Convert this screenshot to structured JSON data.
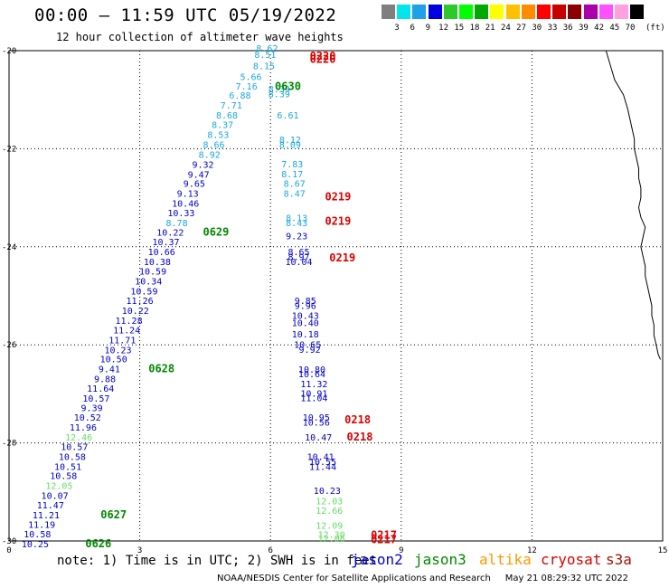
{
  "title": "00:00 – 11:59 UTC 05/19/2022",
  "subtitle": "12 hour collection of altimeter wave heights",
  "legend": {
    "colors": [
      "#7f7f7f",
      "#00e5ee",
      "#1fa0e8",
      "#0000e0",
      "#2ec82e",
      "#00ff00",
      "#00aa00",
      "#ffff00",
      "#ffc000",
      "#ff8c00",
      "#ff0000",
      "#c80000",
      "#8b0000",
      "#aa00aa",
      "#ff50ff",
      "#ffa0e0",
      "#000000"
    ],
    "labels": [
      "3",
      "6",
      "9",
      "12",
      "15",
      "18",
      "21",
      "24",
      "27",
      "30",
      "33",
      "36",
      "39",
      "42",
      "45",
      "70"
    ],
    "unit": "(ft)"
  },
  "axes": {
    "x_ticks": [
      "0",
      "3",
      "6",
      "9",
      "12",
      "15"
    ],
    "y_ticks": [
      "-20",
      "-22",
      "-24",
      "-26",
      "-28",
      "-30"
    ]
  },
  "track_colors": {
    "jason2": "#0000cc",
    "jason3": "#008800",
    "altika": "#ff9900",
    "cryosat": "#dd0000",
    "s3a": "#aa1100",
    "cyan": "#1aa8e0",
    "lightgreen": "#66dd66"
  },
  "tracks": {
    "diagonal": [
      {
        "v": "8.62",
        "x": 5.92,
        "y": -20.02,
        "c": "cyan"
      },
      {
        "v": "8.51",
        "x": 5.88,
        "y": -20.15,
        "c": "cyan"
      },
      {
        "v": "8.15",
        "x": 5.85,
        "y": -20.38,
        "c": "cyan"
      },
      {
        "v": "5.66",
        "x": 5.55,
        "y": -20.6,
        "c": "cyan"
      },
      {
        "v": "7.16",
        "x": 5.45,
        "y": -20.79,
        "c": "cyan"
      },
      {
        "v": "6.88",
        "x": 5.3,
        "y": -20.98,
        "c": "cyan"
      },
      {
        "v": "7.71",
        "x": 5.1,
        "y": -21.18,
        "c": "cyan"
      },
      {
        "v": "8.68",
        "x": 5.0,
        "y": -21.38,
        "c": "cyan"
      },
      {
        "v": "8.37",
        "x": 4.9,
        "y": -21.58,
        "c": "cyan"
      },
      {
        "v": "8.53",
        "x": 4.8,
        "y": -21.78,
        "c": "cyan"
      },
      {
        "v": "8.66",
        "x": 4.7,
        "y": -21.98,
        "c": "cyan"
      },
      {
        "v": "8.92",
        "x": 4.6,
        "y": -22.19,
        "c": "cyan"
      },
      {
        "v": "9.32",
        "x": 4.45,
        "y": -22.39,
        "c": "jason2"
      },
      {
        "v": "9.47",
        "x": 4.35,
        "y": -22.59,
        "c": "jason2"
      },
      {
        "v": "9.65",
        "x": 4.25,
        "y": -22.78,
        "c": "jason2"
      },
      {
        "v": "9.13",
        "x": 4.1,
        "y": -22.98,
        "c": "jason2"
      },
      {
        "v": "10.46",
        "x": 4.05,
        "y": -23.18,
        "c": "jason2"
      },
      {
        "v": "10.33",
        "x": 3.95,
        "y": -23.38,
        "c": "jason2"
      },
      {
        "v": "8.78",
        "x": 3.85,
        "y": -23.58,
        "c": "cyan"
      },
      {
        "v": "10.22",
        "x": 3.7,
        "y": -23.77,
        "c": "jason2"
      },
      {
        "v": "10.37",
        "x": 3.6,
        "y": -23.97,
        "c": "jason2"
      },
      {
        "v": "10.66",
        "x": 3.5,
        "y": -24.17,
        "c": "jason2"
      },
      {
        "v": "10.38",
        "x": 3.4,
        "y": -24.37,
        "c": "jason2"
      },
      {
        "v": "10.59",
        "x": 3.3,
        "y": -24.57,
        "c": "jason2"
      },
      {
        "v": "10.34",
        "x": 3.2,
        "y": -24.77,
        "c": "jason2"
      },
      {
        "v": "10.59",
        "x": 3.1,
        "y": -24.97,
        "c": "jason2"
      },
      {
        "v": "11.26",
        "x": 3.0,
        "y": -25.17,
        "c": "jason2"
      },
      {
        "v": "10.22",
        "x": 2.9,
        "y": -25.37,
        "c": "jason2"
      },
      {
        "v": "11.28",
        "x": 2.75,
        "y": -25.57,
        "c": "jason2"
      },
      {
        "v": "11.24",
        "x": 2.7,
        "y": -25.77,
        "c": "jason2"
      },
      {
        "v": "11.71",
        "x": 2.6,
        "y": -25.97,
        "c": "jason2"
      },
      {
        "v": "10.23",
        "x": 2.5,
        "y": -26.17,
        "c": "jason2"
      },
      {
        "v": "10.50",
        "x": 2.4,
        "y": -26.36,
        "c": "jason2"
      },
      {
        "v": "9.41",
        "x": 2.3,
        "y": -26.56,
        "c": "jason2"
      },
      {
        "v": "9.88",
        "x": 2.2,
        "y": -26.76,
        "c": "jason2"
      },
      {
        "v": "11.64",
        "x": 2.1,
        "y": -26.96,
        "c": "jason2"
      },
      {
        "v": "10.57",
        "x": 2.0,
        "y": -27.16,
        "c": "jason2"
      },
      {
        "v": "9.39",
        "x": 1.9,
        "y": -27.35,
        "c": "jason2"
      },
      {
        "v": "10.52",
        "x": 1.8,
        "y": -27.55,
        "c": "jason2"
      },
      {
        "v": "11.96",
        "x": 1.7,
        "y": -27.75,
        "c": "jason2"
      },
      {
        "v": "12.46",
        "x": 1.6,
        "y": -27.95,
        "c": "lightgreen"
      },
      {
        "v": "10.57",
        "x": 1.5,
        "y": -28.15,
        "c": "jason2"
      },
      {
        "v": "10.58",
        "x": 1.45,
        "y": -28.35,
        "c": "jason2"
      },
      {
        "v": "10.51",
        "x": 1.35,
        "y": -28.55,
        "c": "jason2"
      },
      {
        "v": "10.58",
        "x": 1.25,
        "y": -28.74,
        "c": "jason2"
      },
      {
        "v": "12.05",
        "x": 1.15,
        "y": -28.94,
        "c": "lightgreen"
      },
      {
        "v": "10.07",
        "x": 1.05,
        "y": -29.14,
        "c": "jason2"
      },
      {
        "v": "11.47",
        "x": 0.95,
        "y": -29.34,
        "c": "jason2"
      },
      {
        "v": "11.21",
        "x": 0.85,
        "y": -29.54,
        "c": "jason2"
      },
      {
        "v": "11.19",
        "x": 0.75,
        "y": -29.73,
        "c": "jason2"
      },
      {
        "v": "10.58",
        "x": 0.65,
        "y": -29.93,
        "c": "jason2"
      },
      {
        "v": "10.25",
        "x": 0.6,
        "y": -30.13,
        "c": "jason2"
      }
    ],
    "vertical": [
      {
        "v": "8.39",
        "x": 6.2,
        "y": -20.85,
        "c": "cyan"
      },
      {
        "v": "8.39",
        "x": 6.2,
        "y": -20.95,
        "c": "cyan"
      },
      {
        "v": "6.61",
        "x": 6.4,
        "y": -21.38,
        "c": "cyan"
      },
      {
        "v": "8.12",
        "x": 6.45,
        "y": -21.88,
        "c": "cyan"
      },
      {
        "v": "8.09",
        "x": 6.45,
        "y": -21.98,
        "c": "cyan"
      },
      {
        "v": "7.83",
        "x": 6.5,
        "y": -22.38,
        "c": "cyan"
      },
      {
        "v": "8.17",
        "x": 6.5,
        "y": -22.58,
        "c": "cyan"
      },
      {
        "v": "8.67",
        "x": 6.55,
        "y": -22.78,
        "c": "cyan"
      },
      {
        "v": "8.47",
        "x": 6.55,
        "y": -22.98,
        "c": "cyan"
      },
      {
        "v": "8.13",
        "x": 6.6,
        "y": -23.48,
        "c": "cyan"
      },
      {
        "v": "8.43",
        "x": 6.6,
        "y": -23.58,
        "c": "cyan"
      },
      {
        "v": "9.23",
        "x": 6.6,
        "y": -23.85,
        "c": "jason2"
      },
      {
        "v": "8.65",
        "x": 6.65,
        "y": -24.17,
        "c": "jason2"
      },
      {
        "v": "8.97",
        "x": 6.65,
        "y": -24.27,
        "c": "jason2"
      },
      {
        "v": "10.04",
        "x": 6.65,
        "y": -24.37,
        "c": "jason2"
      },
      {
        "v": "9.85",
        "x": 6.8,
        "y": -25.17,
        "c": "jason2"
      },
      {
        "v": "9.96",
        "x": 6.8,
        "y": -25.27,
        "c": "jason2"
      },
      {
        "v": "10.43",
        "x": 6.8,
        "y": -25.47,
        "c": "jason2"
      },
      {
        "v": "10.40",
        "x": 6.8,
        "y": -25.62,
        "c": "jason2"
      },
      {
        "v": "10.18",
        "x": 6.8,
        "y": -25.85,
        "c": "jason2"
      },
      {
        "v": "10.65",
        "x": 6.85,
        "y": -26.06,
        "c": "jason2"
      },
      {
        "v": "9.92",
        "x": 6.9,
        "y": -26.16,
        "c": "jason2"
      },
      {
        "v": "10.80",
        "x": 6.95,
        "y": -26.57,
        "c": "jason2"
      },
      {
        "v": "10.64",
        "x": 6.95,
        "y": -26.66,
        "c": "jason2"
      },
      {
        "v": "11.32",
        "x": 7.0,
        "y": -26.86,
        "c": "jason2"
      },
      {
        "v": "10.91",
        "x": 7.0,
        "y": -27.06,
        "c": "jason2"
      },
      {
        "v": "11.04",
        "x": 7.0,
        "y": -27.15,
        "c": "jason2"
      },
      {
        "v": "10.95",
        "x": 7.05,
        "y": -27.55,
        "c": "jason2"
      },
      {
        "v": "10.56",
        "x": 7.05,
        "y": -27.65,
        "c": "jason2"
      },
      {
        "v": "10.47",
        "x": 7.1,
        "y": -27.95,
        "c": "jason2"
      },
      {
        "v": "10.41",
        "x": 7.15,
        "y": -28.35,
        "c": "jason2"
      },
      {
        "v": "10.55",
        "x": 7.2,
        "y": -28.45,
        "c": "jason2"
      },
      {
        "v": "11.44",
        "x": 7.2,
        "y": -28.55,
        "c": "jason2"
      },
      {
        "v": "10.23",
        "x": 7.3,
        "y": -29.04,
        "c": "jason2"
      },
      {
        "v": "12.03",
        "x": 7.35,
        "y": -29.25,
        "c": "lightgreen"
      },
      {
        "v": "12.66",
        "x": 7.35,
        "y": -29.45,
        "c": "lightgreen"
      },
      {
        "v": "12.09",
        "x": 7.35,
        "y": -29.75,
        "c": "lightgreen"
      },
      {
        "v": "12.30",
        "x": 7.4,
        "y": -29.94,
        "c": "lightgreen"
      },
      {
        "v": "12.06",
        "x": 7.4,
        "y": -30.02,
        "c": "lightgreen"
      }
    ]
  },
  "time_labels": [
    {
      "t": "0220",
      "x": 7.2,
      "y": -20.18,
      "c": "cryosat"
    },
    {
      "t": "0220",
      "x": 7.2,
      "y": -20.25,
      "c": "cryosat"
    },
    {
      "t": "0630",
      "x": 6.4,
      "y": -20.8,
      "c": "jason3"
    },
    {
      "t": "0219",
      "x": 7.55,
      "y": -23.05,
      "c": "cryosat"
    },
    {
      "t": "0219",
      "x": 7.55,
      "y": -23.55,
      "c": "cryosat"
    },
    {
      "t": "0629",
      "x": 4.75,
      "y": -23.77,
      "c": "jason3"
    },
    {
      "t": "0219",
      "x": 7.65,
      "y": -24.3,
      "c": "cryosat"
    },
    {
      "t": "0628",
      "x": 3.5,
      "y": -26.56,
      "c": "jason3"
    },
    {
      "t": "0218",
      "x": 8.0,
      "y": -27.6,
      "c": "cryosat"
    },
    {
      "t": "0218",
      "x": 8.05,
      "y": -27.95,
      "c": "cryosat"
    },
    {
      "t": "0627",
      "x": 2.4,
      "y": -29.54,
      "c": "jason3"
    },
    {
      "t": "0626",
      "x": 2.05,
      "y": -30.13,
      "c": "jason3"
    },
    {
      "t": "0217",
      "x": 8.6,
      "y": -29.95,
      "c": "cryosat"
    },
    {
      "t": "0217",
      "x": 8.6,
      "y": -30.05,
      "c": "cryosat"
    }
  ],
  "coast": [
    [
      13.7,
      -20.0
    ],
    [
      13.75,
      -20.15
    ],
    [
      13.8,
      -20.3
    ],
    [
      13.85,
      -20.45
    ],
    [
      13.9,
      -20.6
    ],
    [
      14.0,
      -20.75
    ],
    [
      14.1,
      -20.9
    ],
    [
      14.15,
      -21.05
    ],
    [
      14.2,
      -21.2
    ],
    [
      14.25,
      -21.4
    ],
    [
      14.3,
      -21.6
    ],
    [
      14.35,
      -21.8
    ],
    [
      14.35,
      -22.0
    ],
    [
      14.4,
      -22.2
    ],
    [
      14.45,
      -22.4
    ],
    [
      14.45,
      -22.6
    ],
    [
      14.5,
      -22.8
    ],
    [
      14.5,
      -23.0
    ],
    [
      14.45,
      -23.2
    ],
    [
      14.5,
      -23.4
    ],
    [
      14.6,
      -23.6
    ],
    [
      14.55,
      -23.8
    ],
    [
      14.5,
      -24.0
    ],
    [
      14.55,
      -24.2
    ],
    [
      14.6,
      -24.4
    ],
    [
      14.6,
      -24.6
    ],
    [
      14.65,
      -24.8
    ],
    [
      14.7,
      -25.0
    ],
    [
      14.75,
      -25.2
    ],
    [
      14.75,
      -25.4
    ],
    [
      14.8,
      -25.6
    ],
    [
      14.8,
      -25.8
    ],
    [
      14.85,
      -26.0
    ],
    [
      14.9,
      -26.2
    ],
    [
      14.95,
      -26.3
    ]
  ],
  "note": "note: 1) Time is in UTC; 2) SWH is in feet",
  "satellites": [
    {
      "name": "jason2",
      "color": "#0000dd"
    },
    {
      "name": "jason3",
      "color": "#008800"
    },
    {
      "name": "altika",
      "color": "#ff9900"
    },
    {
      "name": "cryosat",
      "color": "#dd0000"
    },
    {
      "name": "s3a",
      "color": "#aa1100"
    }
  ],
  "footer": "NOAA/NESDIS Center for Satellite Applications and Research     May 21 08:29:32 UTC 2022"
}
